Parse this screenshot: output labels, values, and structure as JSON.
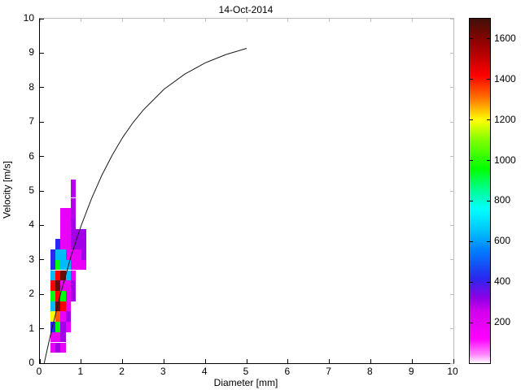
{
  "chart_data": {
    "type": "heatmap",
    "title": "14-Oct-2014",
    "xlabel": "Diameter [mm]",
    "ylabel": "Velocity [m/s]",
    "xlim": [
      0,
      10
    ],
    "ylim": [
      0,
      10
    ],
    "xticks": [
      0,
      1,
      2,
      3,
      4,
      5,
      6,
      7,
      8,
      9,
      10
    ],
    "yticks": [
      0,
      1,
      2,
      3,
      4,
      5,
      6,
      7,
      8,
      9,
      10
    ],
    "grid": false,
    "colorbar": {
      "position": "right",
      "min": 0,
      "max": 1700,
      "ticks": [
        200,
        400,
        600,
        800,
        1000,
        1200,
        1400,
        1600
      ],
      "colormap": [
        [
          0,
          "#ffffff"
        ],
        [
          40,
          "#ff8cff"
        ],
        [
          120,
          "#ff00ff"
        ],
        [
          250,
          "#d400ee"
        ],
        [
          320,
          "#9000e6"
        ],
        [
          420,
          "#2828f0"
        ],
        [
          560,
          "#0080ff"
        ],
        [
          660,
          "#00c8f8"
        ],
        [
          760,
          "#00ffff"
        ],
        [
          860,
          "#00ff8c"
        ],
        [
          960,
          "#00ff00"
        ],
        [
          1100,
          "#80ff00"
        ],
        [
          1200,
          "#ffff00"
        ],
        [
          1310,
          "#ff7000"
        ],
        [
          1420,
          "#ff0000"
        ],
        [
          1560,
          "#a00000"
        ],
        [
          1700,
          "#401008"
        ]
      ]
    },
    "cells_format": [
      "d_min_mm",
      "d_max_mm",
      "v_min_ms",
      "v_max_ms",
      "count"
    ],
    "cells": [
      [
        0.25,
        0.375,
        0.3,
        0.6,
        180
      ],
      [
        0.375,
        0.5,
        0.3,
        0.6,
        300
      ],
      [
        0.5,
        0.625,
        0.3,
        0.6,
        180
      ],
      [
        0.25,
        0.375,
        0.6,
        0.9,
        180
      ],
      [
        0.375,
        0.5,
        0.6,
        0.9,
        180
      ],
      [
        0.5,
        0.625,
        0.6,
        0.9,
        300
      ],
      [
        0.25,
        0.375,
        0.9,
        1.2,
        420
      ],
      [
        0.375,
        0.5,
        0.9,
        1.2,
        950
      ],
      [
        0.5,
        0.625,
        0.9,
        1.2,
        300
      ],
      [
        0.625,
        0.75,
        0.9,
        1.2,
        180
      ],
      [
        0.25,
        0.375,
        1.2,
        1.5,
        1200
      ],
      [
        0.375,
        0.5,
        1.2,
        1.5,
        1330
      ],
      [
        0.5,
        0.625,
        1.2,
        1.5,
        180
      ],
      [
        0.625,
        0.75,
        1.2,
        1.5,
        300
      ],
      [
        0.25,
        0.375,
        1.5,
        1.8,
        640
      ],
      [
        0.375,
        0.5,
        1.5,
        1.8,
        1640
      ],
      [
        0.5,
        0.625,
        1.5,
        1.8,
        1420
      ],
      [
        0.625,
        0.75,
        1.5,
        1.8,
        180
      ],
      [
        0.25,
        0.375,
        1.8,
        2.1,
        950
      ],
      [
        0.375,
        0.5,
        1.8,
        2.1,
        1420
      ],
      [
        0.5,
        0.625,
        1.8,
        2.1,
        950
      ],
      [
        0.625,
        0.75,
        1.8,
        2.1,
        180
      ],
      [
        0.75,
        0.875,
        1.8,
        2.1,
        300
      ],
      [
        0.25,
        0.375,
        2.1,
        2.4,
        1420
      ],
      [
        0.375,
        0.5,
        2.1,
        2.4,
        1640
      ],
      [
        0.5,
        0.625,
        2.1,
        2.4,
        180
      ],
      [
        0.625,
        0.75,
        2.1,
        2.4,
        180
      ],
      [
        0.75,
        0.875,
        2.1,
        2.4,
        300
      ],
      [
        0.25,
        0.375,
        2.4,
        2.7,
        640
      ],
      [
        0.375,
        0.5,
        2.4,
        2.7,
        1420
      ],
      [
        0.5,
        0.625,
        2.4,
        2.7,
        1640
      ],
      [
        0.625,
        0.75,
        2.4,
        2.7,
        640
      ],
      [
        0.75,
        0.875,
        2.4,
        2.7,
        180
      ],
      [
        0.25,
        0.375,
        2.7,
        3.0,
        420
      ],
      [
        0.375,
        0.5,
        2.7,
        3.0,
        950
      ],
      [
        0.5,
        0.625,
        2.7,
        3.0,
        640
      ],
      [
        0.625,
        0.75,
        2.7,
        3.0,
        640
      ],
      [
        0.75,
        1.0,
        2.7,
        3.0,
        180
      ],
      [
        1.0,
        1.125,
        2.7,
        3.0,
        180
      ],
      [
        0.25,
        0.375,
        3.0,
        3.3,
        420
      ],
      [
        0.375,
        0.5,
        3.0,
        3.3,
        640
      ],
      [
        0.5,
        0.625,
        3.0,
        3.3,
        640
      ],
      [
        0.625,
        0.75,
        3.0,
        3.3,
        180
      ],
      [
        0.75,
        1.0,
        3.0,
        3.3,
        180
      ],
      [
        1.0,
        1.125,
        3.0,
        3.3,
        300
      ],
      [
        0.375,
        0.5,
        3.3,
        3.6,
        420
      ],
      [
        0.5,
        0.625,
        3.3,
        3.6,
        180
      ],
      [
        0.625,
        0.75,
        3.3,
        3.6,
        180
      ],
      [
        0.75,
        1.125,
        3.3,
        3.6,
        300
      ],
      [
        0.5,
        0.625,
        3.6,
        3.9,
        180
      ],
      [
        0.625,
        0.75,
        3.6,
        3.9,
        180
      ],
      [
        0.75,
        0.875,
        3.6,
        3.9,
        300
      ],
      [
        0.875,
        1.125,
        3.6,
        3.9,
        300
      ],
      [
        0.5,
        0.625,
        3.9,
        4.2,
        180
      ],
      [
        0.625,
        0.75,
        3.9,
        4.2,
        180
      ],
      [
        0.75,
        0.875,
        3.9,
        4.2,
        300
      ],
      [
        0.5,
        0.625,
        4.2,
        4.5,
        180
      ],
      [
        0.625,
        0.75,
        4.2,
        4.5,
        180
      ],
      [
        0.75,
        0.875,
        4.2,
        4.5,
        280
      ],
      [
        0.75,
        0.875,
        4.5,
        4.8,
        280
      ],
      [
        0.75,
        0.875,
        4.8,
        5.1,
        280
      ],
      [
        0.75,
        0.875,
        5.1,
        5.32,
        280
      ]
    ],
    "curve": {
      "color": "#1a1a1a",
      "points": [
        [
          0.105,
          0
        ],
        [
          0.25,
          0.79
        ],
        [
          0.5,
          2.02
        ],
        [
          0.75,
          3.09
        ],
        [
          1.0,
          4.0
        ],
        [
          1.25,
          4.78
        ],
        [
          1.5,
          5.46
        ],
        [
          1.75,
          6.04
        ],
        [
          2.0,
          6.55
        ],
        [
          2.25,
          6.98
        ],
        [
          2.5,
          7.35
        ],
        [
          3.0,
          7.95
        ],
        [
          3.5,
          8.39
        ],
        [
          4.0,
          8.72
        ],
        [
          4.5,
          8.96
        ],
        [
          5.0,
          9.14
        ]
      ]
    }
  }
}
